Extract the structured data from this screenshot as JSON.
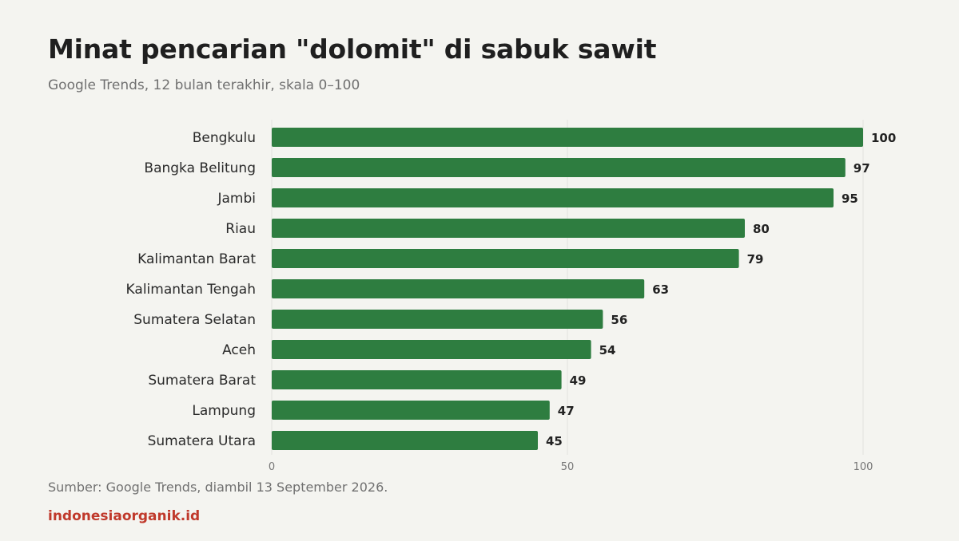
{
  "header": {
    "title": "Minat pencarian \"dolomit\" di sabuk sawit",
    "subtitle": "Google Trends, 12 bulan terakhir, skala 0–100"
  },
  "footer": {
    "source": "Sumber: Google Trends, diambil 13 September 2026.",
    "brand": "indonesiaorganik.id"
  },
  "colors": {
    "bar": "#2e7d40",
    "brand": "#c0392b",
    "grid": "#e2e2de",
    "background": "#f4f4f0"
  },
  "chart_data": {
    "type": "bar",
    "orientation": "horizontal",
    "title": "Minat pencarian \"dolomit\" di sabuk sawit",
    "subtitle": "Google Trends, 12 bulan terakhir, skala 0–100",
    "xlabel": "",
    "ylabel": "",
    "xlim": [
      0,
      100
    ],
    "xticks": [
      0,
      50,
      100
    ],
    "grid": true,
    "categories": [
      "Bengkulu",
      "Bangka Belitung",
      "Jambi",
      "Riau",
      "Kalimantan Barat",
      "Kalimantan Tengah",
      "Sumatera Selatan",
      "Aceh",
      "Sumatera Barat",
      "Lampung",
      "Sumatera Utara"
    ],
    "values": [
      100,
      97,
      95,
      80,
      79,
      63,
      56,
      54,
      49,
      47,
      45
    ]
  }
}
